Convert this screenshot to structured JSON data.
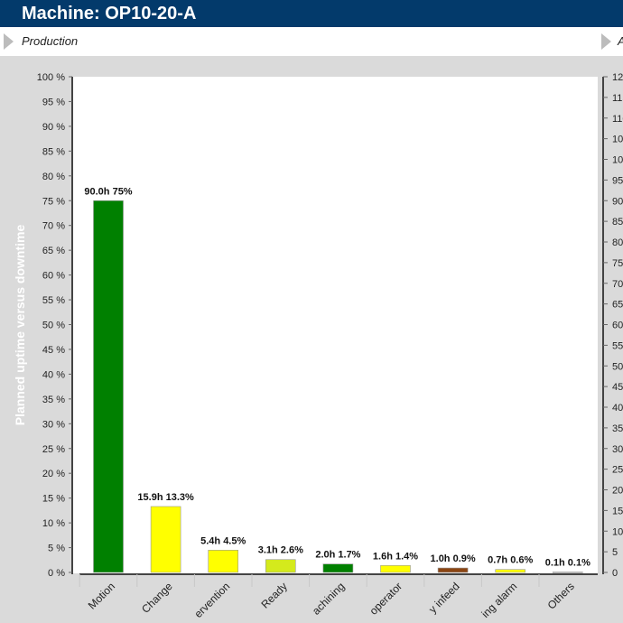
{
  "header": {
    "title": "Machine: OP10-20-A"
  },
  "subheader": {
    "left_label": "Production",
    "right_label": "A"
  },
  "colors": {
    "header_bg": "#033a6b",
    "panel_bg": "#dadada"
  },
  "chart_data": {
    "type": "bar",
    "title": "",
    "ylabel": "Planned uptime versus downtime",
    "xlabel": "",
    "ylim": [
      0,
      100
    ],
    "y_ticks": [
      "0 %",
      "5 %",
      "10 %",
      "15 %",
      "20 %",
      "25 %",
      "30 %",
      "35 %",
      "40 %",
      "45 %",
      "50 %",
      "55 %",
      "60 %",
      "65 %",
      "70 %",
      "75 %",
      "80 %",
      "85 %",
      "90 %",
      "95 %",
      "100 %"
    ],
    "y2lim": [
      0,
      120
    ],
    "y2_ticks": [
      "0",
      "5",
      "10",
      "15",
      "20",
      "25",
      "30",
      "35",
      "40",
      "45",
      "50",
      "55",
      "60",
      "65",
      "70",
      "75",
      "80",
      "85",
      "90",
      "95",
      "100",
      "105",
      "110",
      "115",
      "120"
    ],
    "grid": false,
    "categories": [
      "Motion",
      "Change",
      "ervention",
      "Ready",
      "achining",
      "operator",
      "y infeed",
      "ing alarm",
      "Others"
    ],
    "values": [
      75,
      13.3,
      4.5,
      2.6,
      1.7,
      1.4,
      0.9,
      0.6,
      0.1
    ],
    "hours": [
      90.0,
      15.9,
      5.4,
      3.1,
      2.0,
      1.6,
      1.0,
      0.7,
      0.1
    ],
    "data_labels": [
      "90.0h 75%",
      "15.9h 13.3%",
      "5.4h 4.5%",
      "3.1h 2.6%",
      "2.0h 1.7%",
      "1.6h 1.4%",
      "1.0h 0.9%",
      "0.7h 0.6%",
      "0.1h 0.1%"
    ],
    "bar_colors": [
      "#008000",
      "#ffff00",
      "#ffff00",
      "#d4ea1c",
      "#008000",
      "#ffff00",
      "#8b4513",
      "#ffff00",
      "#c8c8c8"
    ]
  }
}
